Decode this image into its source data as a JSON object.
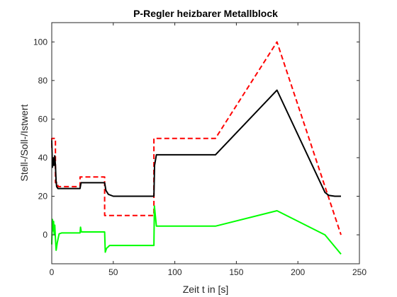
{
  "chart_data": {
    "type": "line",
    "title": "P-Regler heizbarer Metallblock",
    "xlabel": "Zeit t in [s]",
    "ylabel": "Stell-/Soll-/Istwert",
    "xlim": [
      0,
      250
    ],
    "ylim": [
      -15,
      110
    ],
    "xticks": [
      "0",
      "50",
      "100",
      "150",
      "200",
      "250"
    ],
    "yticks": [
      "0",
      "20",
      "40",
      "60",
      "80",
      "100"
    ],
    "grid": false,
    "legend": "none",
    "series": [
      {
        "color": "#ff0000",
        "style": "dashed",
        "x": [
          0,
          0,
          3,
          3,
          5,
          5,
          23,
          23,
          43,
          43,
          83,
          83,
          133,
          183,
          235
        ],
        "y": [
          45,
          50,
          50,
          27,
          27,
          25,
          25,
          30,
          30,
          10,
          10,
          50,
          50,
          100,
          0
        ]
      },
      {
        "color": "#000000",
        "style": "solid",
        "x": [
          0,
          0.6,
          1.2,
          1.8,
          2.4,
          3,
          3.5,
          4,
          5,
          6,
          8,
          23,
          23.8,
          43,
          44,
          46,
          50,
          83,
          83.5,
          85,
          133,
          183,
          222,
          225,
          230,
          235
        ],
        "y": [
          49,
          35,
          40,
          36,
          41,
          36,
          28,
          25,
          24,
          24,
          24,
          24,
          27,
          27,
          23,
          21,
          20,
          20,
          36,
          41.5,
          41.5,
          75,
          22,
          20.5,
          20,
          20
        ]
      },
      {
        "color": "#00ff00",
        "style": "solid",
        "x": [
          0,
          0.5,
          1,
          1.5,
          2,
          2.5,
          3,
          3.6,
          4.5,
          6,
          8,
          23,
          23.4,
          24,
          43,
          43.5,
          44.5,
          47,
          83,
          83.4,
          85,
          133,
          183,
          222,
          235
        ],
        "y": [
          -5,
          8,
          2,
          7,
          0,
          5,
          -2,
          -8,
          -4,
          0.5,
          1,
          1,
          4,
          1.5,
          1.5,
          -9,
          -7,
          -5.5,
          -5.5,
          15,
          4.5,
          4.5,
          12.5,
          0,
          -10
        ]
      }
    ]
  }
}
